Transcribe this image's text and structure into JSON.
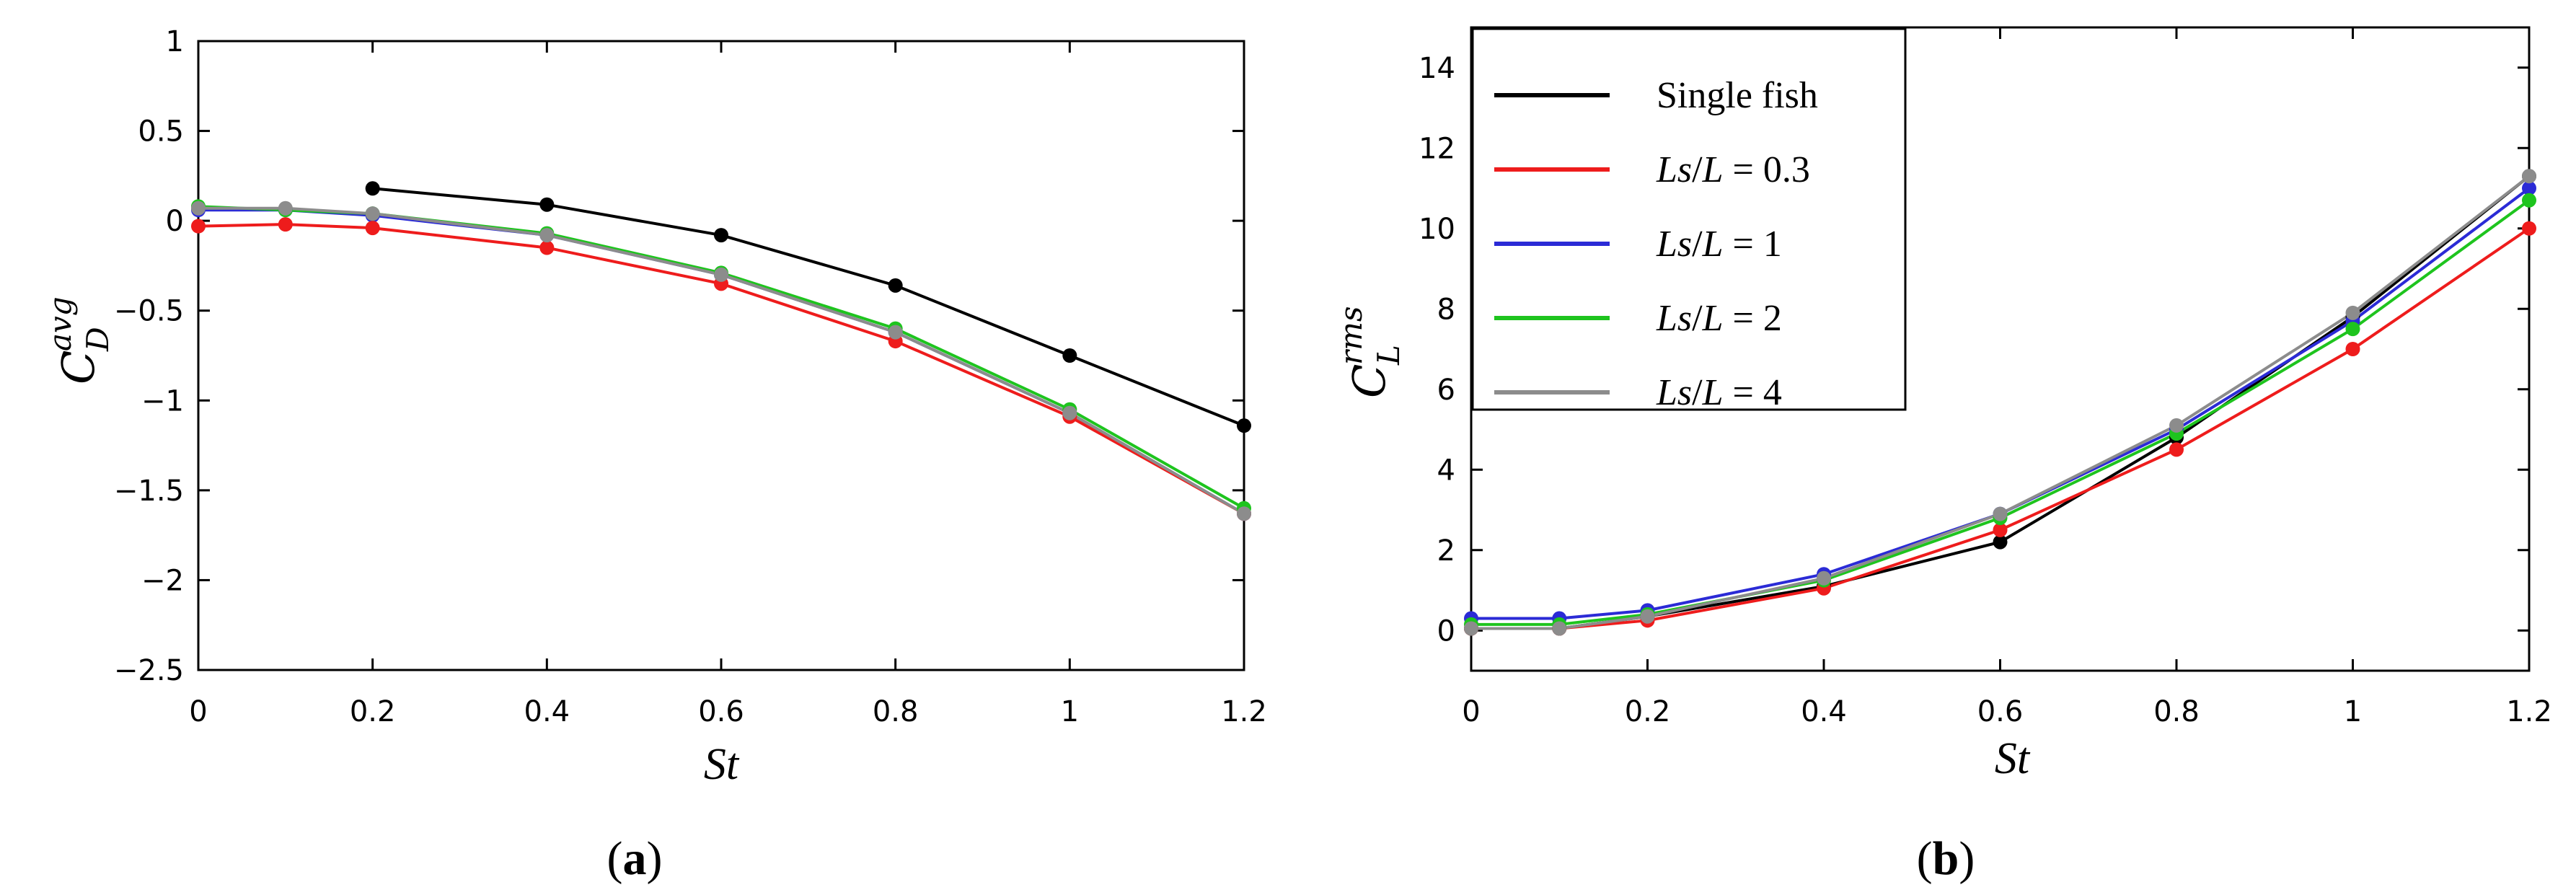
{
  "chart_data": [
    {
      "type": "line",
      "panel": "a",
      "panel_label": {
        "open": "(",
        "letter": "a",
        "close": ")"
      },
      "xlabel": "St",
      "ylabel": {
        "main": "C",
        "sup": "avg",
        "sub": "D"
      },
      "xlim": [
        0,
        1.2
      ],
      "ylim": [
        -2.5,
        1
      ],
      "xticks": [
        0,
        0.2,
        0.4,
        0.6,
        0.8,
        1,
        1.2
      ],
      "xtick_labels": [
        "0",
        "0.2",
        "0.4",
        "0.6",
        "0.8",
        "1",
        "1.2"
      ],
      "yticks": [
        1,
        0.5,
        0,
        -0.5,
        -1,
        -1.5,
        -2,
        -2.5
      ],
      "ytick_labels": [
        "1",
        "0.5",
        "0",
        "−0.5",
        "−1",
        "−1.5",
        "−2",
        "−2.5"
      ],
      "series": [
        {
          "name": "Ls/L = 1",
          "color": "#2b2bd6",
          "x": [
            0,
            0.1,
            0.2,
            0.4,
            0.6,
            0.8,
            1,
            1.2
          ],
          "y": [
            0.06,
            0.06,
            0.03,
            -0.08,
            -0.3,
            -0.62,
            -1.07,
            -1.63
          ]
        },
        {
          "name": "Ls/L = 0.3",
          "color": "#ee1c1c",
          "x": [
            0,
            0.1,
            0.2,
            0.4,
            0.6,
            0.8,
            1,
            1.2
          ],
          "y": [
            -0.03,
            -0.02,
            -0.04,
            -0.15,
            -0.35,
            -0.67,
            -1.09,
            -1.63
          ]
        },
        {
          "name": "Ls/L = 2",
          "color": "#1ec41e",
          "x": [
            0,
            0.1,
            0.2,
            0.4,
            0.6,
            0.8,
            1,
            1.2
          ],
          "y": [
            0.08,
            0.06,
            0.04,
            -0.07,
            -0.29,
            -0.6,
            -1.05,
            -1.6
          ]
        },
        {
          "name": "Ls/L = 4",
          "color": "#8c8c8c",
          "x": [
            0,
            0.1,
            0.2,
            0.4,
            0.6,
            0.8,
            1,
            1.2
          ],
          "y": [
            0.07,
            0.07,
            0.04,
            -0.08,
            -0.3,
            -0.62,
            -1.07,
            -1.63
          ]
        },
        {
          "name": "Single fish",
          "color": "#000000",
          "x": [
            0.2,
            0.4,
            0.6,
            0.8,
            1,
            1.2
          ],
          "y": [
            0.18,
            0.09,
            -0.08,
            -0.36,
            -0.75,
            -1.14
          ]
        }
      ]
    },
    {
      "type": "line",
      "panel": "b",
      "panel_label": {
        "open": "(",
        "letter": "b",
        "close": ")"
      },
      "xlabel": "St",
      "ylabel": {
        "main": "C",
        "sup": "rms",
        "sub": "L"
      },
      "xlim": [
        0,
        1.2
      ],
      "ylim": [
        -1,
        15
      ],
      "xticks": [
        0,
        0.2,
        0.4,
        0.6,
        0.8,
        1,
        1.2
      ],
      "xtick_labels": [
        "0",
        "0.2",
        "0.4",
        "0.6",
        "0.8",
        "1",
        "1.2"
      ],
      "yticks": [
        0,
        2,
        4,
        6,
        8,
        10,
        12,
        14
      ],
      "ytick_labels": [
        "0",
        "2",
        "4",
        "6",
        "8",
        "10",
        "12",
        "14"
      ],
      "legend_position": "top-left",
      "series": [
        {
          "name": "Single fish",
          "color": "#000000",
          "x": [
            0,
            0.1,
            0.2,
            0.4,
            0.6,
            0.8,
            1,
            1.2
          ],
          "y": [
            0.05,
            0.05,
            0.35,
            1.1,
            2.2,
            4.8,
            7.8,
            11.3
          ]
        },
        {
          "name": "Ls/L = 0.3",
          "color": "#ee1c1c",
          "x": [
            0,
            0.1,
            0.2,
            0.4,
            0.6,
            0.8,
            1,
            1.2
          ],
          "y": [
            0.05,
            0.05,
            0.25,
            1.05,
            2.5,
            4.5,
            7.0,
            10.0
          ]
        },
        {
          "name": "Ls/L = 1",
          "color": "#2b2bd6",
          "x": [
            0,
            0.1,
            0.2,
            0.4,
            0.6,
            0.8,
            1,
            1.2
          ],
          "y": [
            0.3,
            0.3,
            0.5,
            1.4,
            2.9,
            5.0,
            7.7,
            11.0
          ]
        },
        {
          "name": "Ls/L = 2",
          "color": "#1ec41e",
          "x": [
            0,
            0.1,
            0.2,
            0.4,
            0.6,
            0.8,
            1,
            1.2
          ],
          "y": [
            0.15,
            0.15,
            0.4,
            1.25,
            2.8,
            4.9,
            7.5,
            10.7
          ]
        },
        {
          "name": "Ls/L = 4",
          "color": "#8c8c8c",
          "x": [
            0,
            0.1,
            0.2,
            0.4,
            0.6,
            0.8,
            1,
            1.2
          ],
          "y": [
            0.05,
            0.05,
            0.35,
            1.3,
            2.9,
            5.1,
            7.9,
            11.3
          ]
        }
      ],
      "legend": [
        {
          "color": "#000000",
          "parts": [
            {
              "t": "Single  fish",
              "i": false
            }
          ]
        },
        {
          "color": "#ee1c1c",
          "parts": [
            {
              "t": "Ls",
              "i": true
            },
            {
              "t": "/",
              "i": false
            },
            {
              "t": "L",
              "i": true
            },
            {
              "t": " = 0.3",
              "i": false
            }
          ]
        },
        {
          "color": "#2b2bd6",
          "parts": [
            {
              "t": "Ls",
              "i": true
            },
            {
              "t": "/",
              "i": false
            },
            {
              "t": "L",
              "i": true
            },
            {
              "t": " = 1",
              "i": false
            }
          ]
        },
        {
          "color": "#1ec41e",
          "parts": [
            {
              "t": "Ls",
              "i": true
            },
            {
              "t": "/",
              "i": false
            },
            {
              "t": "L",
              "i": true
            },
            {
              "t": " = 2",
              "i": false
            }
          ]
        },
        {
          "color": "#8c8c8c",
          "parts": [
            {
              "t": "Ls",
              "i": true
            },
            {
              "t": "/",
              "i": false
            },
            {
              "t": "L",
              "i": true
            },
            {
              "t": " = 4",
              "i": false
            }
          ]
        }
      ]
    }
  ]
}
